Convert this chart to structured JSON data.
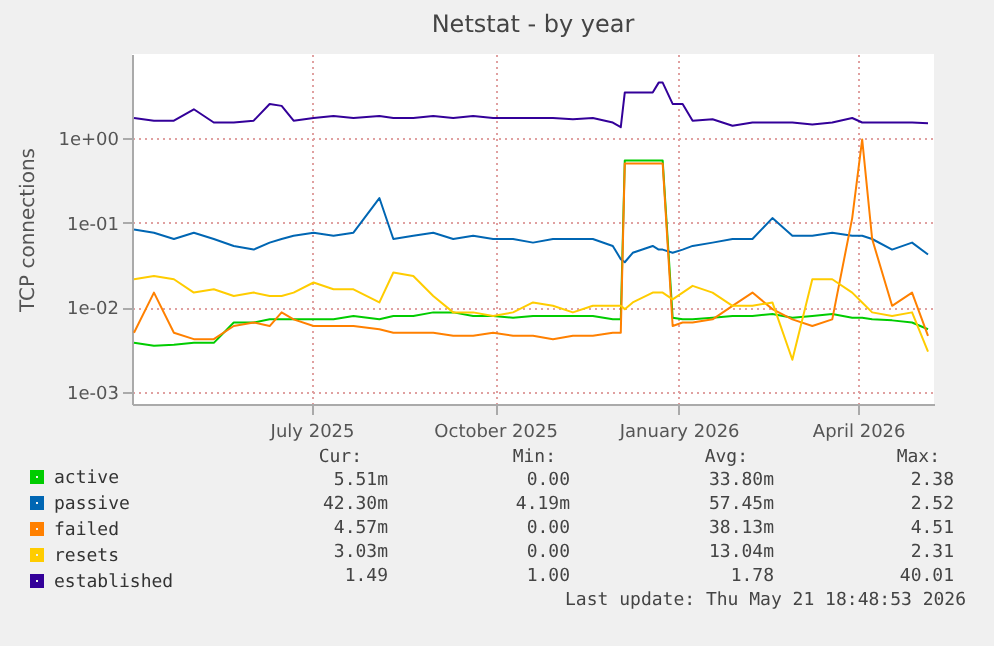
{
  "chart_data": {
    "type": "line",
    "title": "Netstat - by year",
    "ylabel": "TCP connections",
    "x": [
      "2025-04-18",
      "2025-04-28",
      "2025-05-08",
      "2025-05-18",
      "2025-05-28",
      "2025-06-07",
      "2025-06-17",
      "2025-06-25",
      "2025-07-01",
      "2025-07-07",
      "2025-07-17",
      "2025-07-27",
      "2025-08-06",
      "2025-08-19",
      "2025-08-26",
      "2025-09-05",
      "2025-09-15",
      "2025-09-25",
      "2025-10-05",
      "2025-10-15",
      "2025-10-25",
      "2025-11-04",
      "2025-11-14",
      "2025-11-24",
      "2025-12-04",
      "2025-12-14",
      "2025-12-18",
      "2025-12-20",
      "2025-12-24",
      "2026-01-03",
      "2026-01-06",
      "2026-01-08",
      "2026-01-13",
      "2026-01-18",
      "2026-01-23",
      "2026-02-02",
      "2026-02-12",
      "2026-02-22",
      "2026-03-04",
      "2026-03-14",
      "2026-03-24",
      "2026-04-03",
      "2026-04-13",
      "2026-04-18",
      "2026-04-23",
      "2026-05-03",
      "2026-05-13",
      "2026-05-21"
    ],
    "series": [
      {
        "name": "active",
        "color": "#00cc00",
        "values": [
          0.0038,
          0.0035,
          0.0036,
          0.0038,
          0.0038,
          0.0066,
          0.0066,
          0.0072,
          0.0072,
          0.0072,
          0.0072,
          0.0072,
          0.0079,
          0.0072,
          0.0079,
          0.0079,
          0.0087,
          0.0087,
          0.0079,
          0.0079,
          0.0075,
          0.0079,
          0.0079,
          0.0079,
          0.0079,
          0.0072,
          0.0072,
          0.54,
          0.54,
          0.54,
          0.54,
          0.54,
          0.0075,
          0.0072,
          0.0072,
          0.0075,
          0.0079,
          0.0079,
          0.0083,
          0.0075,
          0.0079,
          0.0083,
          0.0075,
          0.0075,
          0.0072,
          0.007,
          0.0066,
          0.0055
        ]
      },
      {
        "name": "passive",
        "color": "#0066b3",
        "values": [
          0.083,
          0.076,
          0.064,
          0.076,
          0.064,
          0.053,
          0.048,
          0.058,
          0.064,
          0.07,
          0.076,
          0.07,
          0.076,
          0.195,
          0.064,
          0.07,
          0.076,
          0.064,
          0.07,
          0.064,
          0.064,
          0.058,
          0.064,
          0.064,
          0.064,
          0.053,
          0.037,
          0.034,
          0.044,
          0.053,
          0.048,
          0.048,
          0.044,
          0.048,
          0.053,
          0.058,
          0.064,
          0.064,
          0.113,
          0.07,
          0.07,
          0.076,
          0.07,
          0.07,
          0.064,
          0.048,
          0.058,
          0.042
        ]
      },
      {
        "name": "failed",
        "color": "#ff8000",
        "values": [
          0.005,
          0.0149,
          0.005,
          0.0042,
          0.0042,
          0.006,
          0.0066,
          0.006,
          0.0087,
          0.0072,
          0.006,
          0.006,
          0.006,
          0.0055,
          0.005,
          0.005,
          0.005,
          0.0046,
          0.0046,
          0.005,
          0.0046,
          0.0046,
          0.0042,
          0.0046,
          0.0046,
          0.005,
          0.005,
          0.5,
          0.5,
          0.5,
          0.5,
          0.5,
          0.006,
          0.0066,
          0.0066,
          0.0072,
          0.0104,
          0.0149,
          0.0095,
          0.0072,
          0.006,
          0.0072,
          0.113,
          0.96,
          0.064,
          0.0104,
          0.0149,
          0.0046
        ]
      },
      {
        "name": "resets",
        "color": "#ffcc00",
        "values": [
          0.0214,
          0.0234,
          0.0214,
          0.0149,
          0.0163,
          0.0136,
          0.0149,
          0.0136,
          0.0136,
          0.0149,
          0.0196,
          0.0163,
          0.0163,
          0.0114,
          0.0257,
          0.0234,
          0.0136,
          0.0087,
          0.0087,
          0.0079,
          0.0087,
          0.0114,
          0.0104,
          0.0087,
          0.0104,
          0.0104,
          0.0104,
          0.0095,
          0.0114,
          0.0149,
          0.0149,
          0.0149,
          0.0124,
          0.0149,
          0.0179,
          0.0149,
          0.0104,
          0.0104,
          0.0114,
          0.0024,
          0.0214,
          0.0214,
          0.0149,
          0.0114,
          0.0087,
          0.0079,
          0.0087,
          0.003
        ]
      },
      {
        "name": "established",
        "color": "#330099",
        "values": [
          1.72,
          1.6,
          1.6,
          2.18,
          1.52,
          1.52,
          1.6,
          2.52,
          2.39,
          1.6,
          1.72,
          1.82,
          1.72,
          1.82,
          1.72,
          1.72,
          1.82,
          1.72,
          1.82,
          1.72,
          1.72,
          1.72,
          1.72,
          1.66,
          1.72,
          1.52,
          1.34,
          3.43,
          3.43,
          3.43,
          4.5,
          4.5,
          2.52,
          2.52,
          1.6,
          1.66,
          1.39,
          1.52,
          1.52,
          1.52,
          1.44,
          1.52,
          1.72,
          1.52,
          1.52,
          1.52,
          1.52,
          1.49
        ]
      }
    ],
    "xlim": [
      "2025-04-17",
      "2026-05-24"
    ],
    "xticks": [
      {
        "value": "2025-07-16",
        "label": "July 2025"
      },
      {
        "value": "2025-10-16",
        "label": "October 2025"
      },
      {
        "value": "2026-01-16",
        "label": "January 2026"
      },
      {
        "value": "2026-04-16",
        "label": "April 2026"
      }
    ],
    "ylim": [
      0.00072,
      9.8
    ],
    "yticks": [
      {
        "value": 0.001,
        "label": "1e-03"
      },
      {
        "value": 0.01,
        "label": "1e-02"
      },
      {
        "value": 0.1,
        "label": "1e-01"
      },
      {
        "value": 1,
        "label": "1e+00"
      }
    ],
    "log": "y",
    "grid": true,
    "legend": "bottom left",
    "annotations": [
      "Cur:",
      "Min:",
      "Avg:",
      "Max:",
      "5.51m",
      "0.00",
      "33.80m",
      "2.38",
      "42.30m",
      "4.19m",
      "57.45m",
      "2.52",
      "4.57m",
      "0.00",
      "38.13m",
      "4.51",
      "3.03m",
      "0.00",
      "13.04m",
      "2.31",
      "1.49",
      "1.00",
      "1.78",
      "40.01",
      "Last update: Thu May 21 18:48:53 2026"
    ]
  }
}
